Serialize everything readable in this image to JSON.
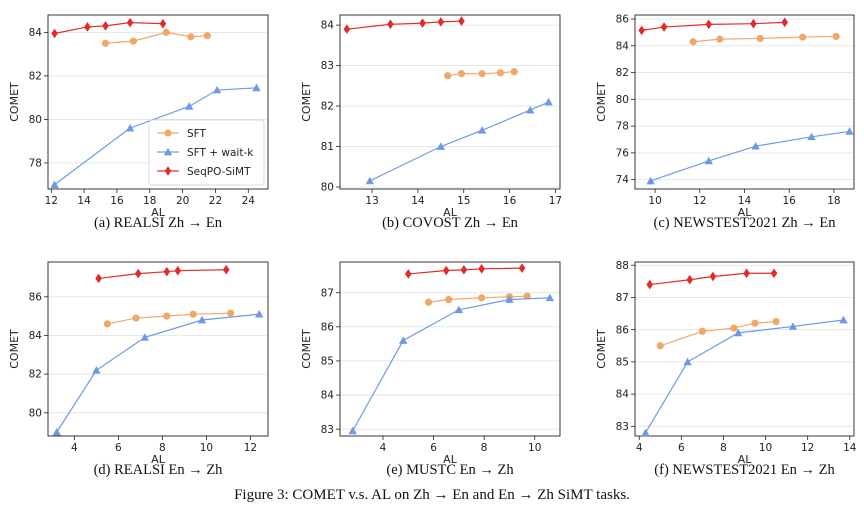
{
  "figure_caption": "Figure 3: COMET v.s. AL on Zh → En and En → Zh SiMT tasks.",
  "colors": {
    "SFT": "#f0a868",
    "SFT + wait-k": "#6c9be4",
    "SeqPO-SiMT": "#e22c2c",
    "grid": "#e2e2e2"
  },
  "chart_data": [
    {
      "type": "line",
      "caption": "(a) REALSI Zh → En",
      "xlabel": "AL",
      "ylabel": "COMET",
      "xlim": [
        11.8,
        25.2
      ],
      "ylim": [
        76.8,
        84.8
      ],
      "xticks": [
        12,
        14,
        16,
        18,
        20,
        22,
        24
      ],
      "yticks": [
        78,
        80,
        82,
        84
      ],
      "grid": "horizontal",
      "legend": "lower-right",
      "series": [
        {
          "name": "SFT",
          "marker": "circle",
          "x": [
            15.3,
            17.0,
            19.0,
            20.5,
            21.5
          ],
          "y": [
            83.5,
            83.6,
            84.0,
            83.8,
            83.85
          ]
        },
        {
          "name": "SFT + wait-k",
          "marker": "triangle",
          "x": [
            12.2,
            16.8,
            20.4,
            22.1,
            24.5
          ],
          "y": [
            77.0,
            79.6,
            80.6,
            81.35,
            81.45
          ]
        },
        {
          "name": "SeqPO-SiMT",
          "marker": "diamond",
          "x": [
            12.2,
            14.2,
            15.3,
            16.8,
            18.8
          ],
          "y": [
            83.95,
            84.25,
            84.3,
            84.45,
            84.4
          ]
        }
      ]
    },
    {
      "type": "line",
      "caption": "(b) COVOST Zh → En",
      "xlabel": "AL",
      "ylabel": "COMET",
      "xlim": [
        12.3,
        17.1
      ],
      "ylim": [
        79.95,
        84.25
      ],
      "xticks": [
        13,
        14,
        15,
        16,
        17
      ],
      "yticks": [
        80,
        81,
        82,
        83,
        84
      ],
      "grid": "horizontal",
      "legend": "",
      "series": [
        {
          "name": "SFT",
          "marker": "circle",
          "x": [
            14.65,
            14.95,
            15.4,
            15.8,
            16.1
          ],
          "y": [
            82.75,
            82.8,
            82.8,
            82.82,
            82.85
          ]
        },
        {
          "name": "SFT + wait-k",
          "marker": "triangle",
          "x": [
            12.95,
            14.5,
            15.4,
            16.45,
            16.85
          ],
          "y": [
            80.15,
            81.0,
            81.4,
            81.9,
            82.1
          ]
        },
        {
          "name": "SeqPO-SiMT",
          "marker": "diamond",
          "x": [
            12.45,
            13.4,
            14.1,
            14.5,
            14.95
          ],
          "y": [
            83.9,
            84.02,
            84.05,
            84.08,
            84.1
          ]
        }
      ]
    },
    {
      "type": "line",
      "caption": "(c) NEWSTEST2021 Zh → En",
      "xlabel": "AL",
      "ylabel": "COMET",
      "xlim": [
        9.1,
        18.9
      ],
      "ylim": [
        73.3,
        86.3
      ],
      "xticks": [
        10,
        12,
        14,
        16,
        18
      ],
      "yticks": [
        74,
        76,
        78,
        80,
        82,
        84,
        86
      ],
      "grid": "horizontal",
      "legend": "",
      "series": [
        {
          "name": "SFT",
          "marker": "circle",
          "x": [
            11.7,
            12.9,
            14.7,
            16.6,
            18.1
          ],
          "y": [
            84.3,
            84.5,
            84.55,
            84.65,
            84.7
          ]
        },
        {
          "name": "SFT + wait-k",
          "marker": "triangle",
          "x": [
            9.8,
            12.4,
            14.5,
            17.0,
            18.7
          ],
          "y": [
            73.9,
            75.4,
            76.5,
            77.2,
            77.6
          ]
        },
        {
          "name": "SeqPO-SiMT",
          "marker": "diamond",
          "x": [
            9.4,
            10.4,
            12.4,
            14.4,
            15.8
          ],
          "y": [
            85.15,
            85.4,
            85.6,
            85.65,
            85.75
          ]
        }
      ]
    },
    {
      "type": "line",
      "caption": "(d) REALSI En → Zh",
      "xlabel": "AL",
      "ylabel": "COMET",
      "xlim": [
        2.8,
        12.8
      ],
      "ylim": [
        78.8,
        87.8
      ],
      "xticks": [
        4,
        6,
        8,
        10,
        12
      ],
      "yticks": [
        80,
        82,
        84,
        86
      ],
      "grid": "horizontal",
      "legend": "",
      "series": [
        {
          "name": "SFT",
          "marker": "circle",
          "x": [
            5.5,
            6.8,
            8.2,
            9.4,
            11.1
          ],
          "y": [
            84.6,
            84.9,
            85.0,
            85.1,
            85.15
          ]
        },
        {
          "name": "SFT + wait-k",
          "marker": "triangle",
          "x": [
            3.2,
            5.0,
            7.2,
            9.8,
            12.4
          ],
          "y": [
            79.0,
            82.2,
            83.9,
            84.8,
            85.1
          ]
        },
        {
          "name": "SeqPO-SiMT",
          "marker": "diamond",
          "x": [
            5.1,
            6.9,
            8.2,
            8.7,
            10.9
          ],
          "y": [
            86.95,
            87.2,
            87.3,
            87.35,
            87.4
          ]
        }
      ]
    },
    {
      "type": "line",
      "caption": "(e) MUSTC En → Zh",
      "xlabel": "AL",
      "ylabel": "COMET",
      "xlim": [
        2.3,
        11.0
      ],
      "ylim": [
        82.8,
        87.9
      ],
      "xticks": [
        4,
        6,
        8,
        10
      ],
      "yticks": [
        83,
        84,
        85,
        86,
        87
      ],
      "grid": "horizontal",
      "legend": "",
      "series": [
        {
          "name": "SFT",
          "marker": "circle",
          "x": [
            5.8,
            6.6,
            7.9,
            9.0,
            9.7
          ],
          "y": [
            86.72,
            86.8,
            86.85,
            86.88,
            86.9
          ]
        },
        {
          "name": "SFT + wait-k",
          "marker": "triangle",
          "x": [
            2.8,
            4.8,
            7.0,
            9.0,
            10.6
          ],
          "y": [
            82.95,
            85.6,
            86.5,
            86.8,
            86.85
          ]
        },
        {
          "name": "SeqPO-SiMT",
          "marker": "diamond",
          "x": [
            5.0,
            6.5,
            7.2,
            7.9,
            9.5
          ],
          "y": [
            87.55,
            87.65,
            87.67,
            87.7,
            87.72
          ]
        }
      ]
    },
    {
      "type": "line",
      "caption": "(f) NEWSTEST2021 En → Zh",
      "xlabel": "AL",
      "ylabel": "COMET",
      "xlim": [
        3.8,
        14.2
      ],
      "ylim": [
        82.7,
        88.1
      ],
      "xticks": [
        4,
        6,
        8,
        10,
        12,
        14
      ],
      "yticks": [
        83,
        84,
        85,
        86,
        87,
        88
      ],
      "grid": "horizontal",
      "legend": "",
      "series": [
        {
          "name": "SFT",
          "marker": "circle",
          "x": [
            5.0,
            7.0,
            8.5,
            9.5,
            10.5
          ],
          "y": [
            85.5,
            85.95,
            86.05,
            86.2,
            86.25
          ]
        },
        {
          "name": "SFT + wait-k",
          "marker": "triangle",
          "x": [
            4.3,
            6.3,
            8.7,
            11.3,
            13.7
          ],
          "y": [
            82.8,
            85.0,
            85.9,
            86.1,
            86.3
          ]
        },
        {
          "name": "SeqPO-SiMT",
          "marker": "diamond",
          "x": [
            4.5,
            6.4,
            7.5,
            9.1,
            10.4
          ],
          "y": [
            87.4,
            87.55,
            87.65,
            87.75,
            87.75
          ]
        }
      ]
    }
  ]
}
